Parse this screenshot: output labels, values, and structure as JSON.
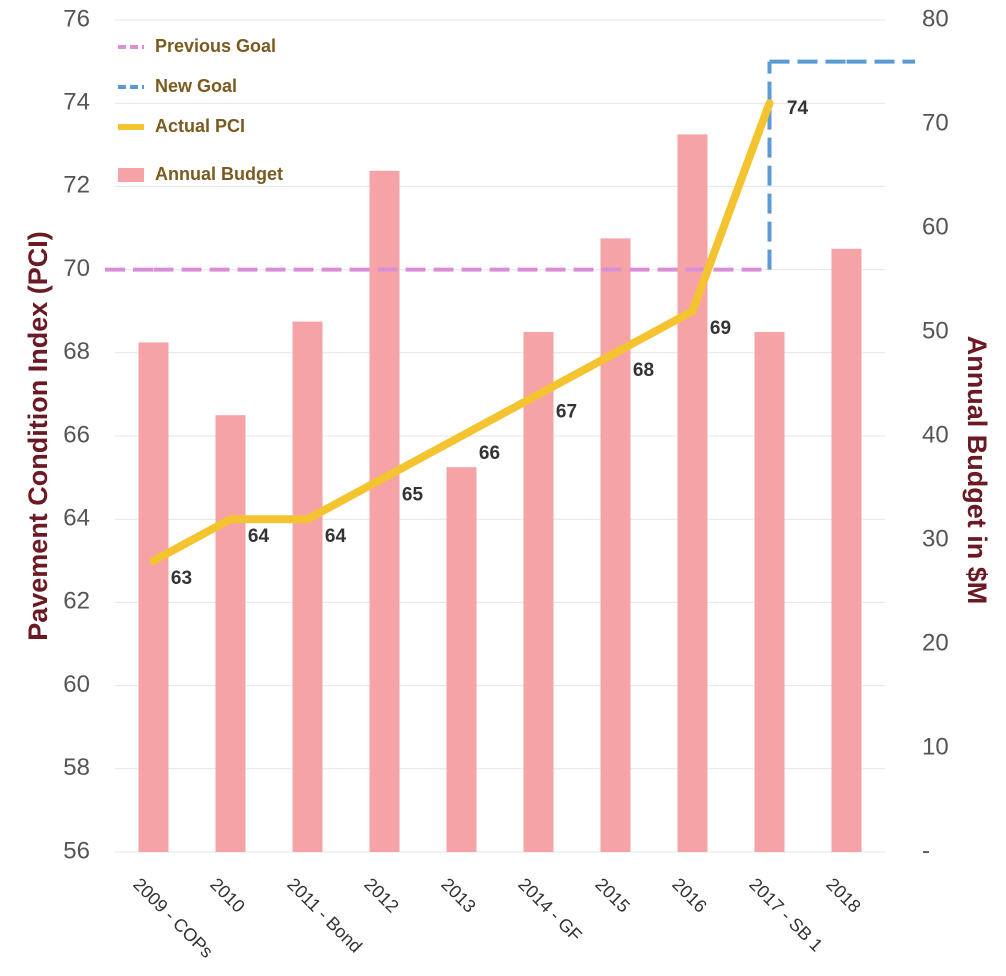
{
  "chart_data": {
    "type": "combo",
    "categories": [
      "2009 - COPs",
      "2010",
      "2011 - Bond",
      "2012",
      "2013",
      "2014 - GF",
      "2015",
      "2016",
      "2017 - SB 1",
      "2018"
    ],
    "ylabel": "Pavement Condition Index (PCI)",
    "y2label": "Annual Budget in $M",
    "ylim": [
      56,
      76
    ],
    "yticks": [
      56,
      58,
      60,
      62,
      64,
      66,
      68,
      70,
      72,
      74,
      76
    ],
    "y2lim": [
      0,
      80
    ],
    "y2ticks": [
      {
        "value": 0,
        "label": "-"
      },
      10,
      20,
      30,
      40,
      50,
      60,
      70,
      80
    ],
    "grid": true,
    "legend": "upper left",
    "series": [
      {
        "name": "Previous Goal",
        "type": "line",
        "dash": true,
        "color": "#d98fd6",
        "values": [
          70,
          70,
          70,
          70,
          70,
          70,
          70,
          70,
          70,
          null
        ]
      },
      {
        "name": "New Goal",
        "type": "line",
        "dash": true,
        "color": "#5b9bd5",
        "values": [
          null,
          null,
          null,
          null,
          null,
          null,
          null,
          null,
          75,
          75
        ]
      },
      {
        "name": "Actual PCI",
        "type": "line",
        "color": "#f4c430",
        "labels": true,
        "values": [
          63,
          64,
          64,
          65,
          66,
          67,
          68,
          69,
          74,
          null
        ]
      },
      {
        "name": "Annual Budget",
        "type": "bar",
        "axis": "y2",
        "color": "#f5a3a6",
        "values": [
          49,
          42,
          51,
          65.5,
          37,
          50,
          59,
          69,
          50,
          58
        ]
      }
    ]
  }
}
